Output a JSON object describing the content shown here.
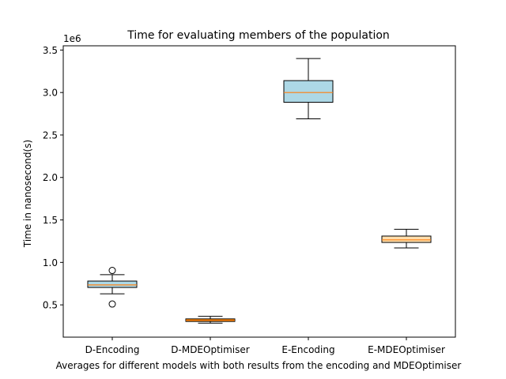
{
  "chart_data": {
    "type": "boxplot",
    "title": "Time for evaluating members of the population",
    "xlabel": "Averages for different models with both results from the encoding and MDEOptimiser",
    "ylabel": "Time in nanosecond(s)",
    "y_multiplier_label": "1e6",
    "ylim": [
      0.12,
      3.55
    ],
    "yticks": [
      0.5,
      1.0,
      1.5,
      2.0,
      2.5,
      3.0,
      3.5
    ],
    "ytick_labels": [
      "0.5",
      "1.0",
      "1.5",
      "2.0",
      "2.5",
      "3.0",
      "3.5"
    ],
    "grid": false,
    "median_color": "#ff7f0e",
    "categories": [
      "D-Encoding",
      "D-MDEOptimiser",
      "E-Encoding",
      "E-MDEOptimiser"
    ],
    "boxes": [
      {
        "label": "D-Encoding",
        "fill": "#add8e6",
        "whisker_low": 0.63,
        "q1": 0.705,
        "median": 0.735,
        "q3": 0.78,
        "whisker_high": 0.855,
        "outliers": [
          0.905,
          0.51
        ]
      },
      {
        "label": "D-MDEOptimiser",
        "fill": "#ff8c00",
        "whisker_low": 0.285,
        "q1": 0.305,
        "median": 0.32,
        "q3": 0.335,
        "whisker_high": 0.365,
        "outliers": []
      },
      {
        "label": "E-Encoding",
        "fill": "#add8e6",
        "whisker_low": 2.69,
        "q1": 2.885,
        "median": 3.0,
        "q3": 3.14,
        "whisker_high": 3.4,
        "outliers": []
      },
      {
        "label": "E-MDEOptimiser",
        "fill": "#ffdead",
        "whisker_low": 1.17,
        "q1": 1.235,
        "median": 1.265,
        "q3": 1.31,
        "whisker_high": 1.39,
        "outliers": []
      }
    ]
  }
}
